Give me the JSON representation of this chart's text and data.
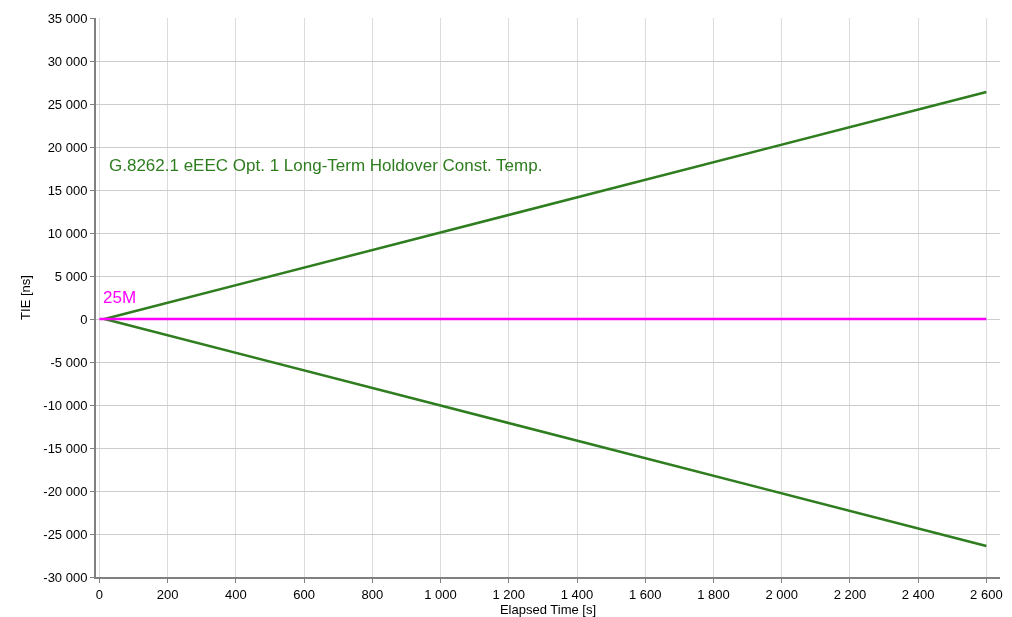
{
  "chart_data": {
    "type": "line",
    "xlabel": "Elapsed Time [s]",
    "ylabel": "TIE [ns]",
    "series": [
      {
        "name": "G.8262.1 eEEC Opt. 1 Long-Term Holdover Const. Temp.",
        "color": "#2e7d1f",
        "x": [
          15,
          2600
        ],
        "values": [
          0,
          26400
        ]
      },
      {
        "color": "#2e7d1f",
        "x": [
          15,
          2600
        ],
        "values": [
          0,
          -26400
        ]
      },
      {
        "name": "25M",
        "color": "#ff00ff",
        "x": [
          0,
          2600
        ],
        "values": [
          0,
          0
        ]
      }
    ],
    "xlim": [
      -10,
      2640
    ],
    "ylim": [
      -30000,
      35000
    ],
    "xticks": [
      0,
      200,
      400,
      600,
      800,
      {
        "value": 1000,
        "label": "1 000"
      },
      {
        "value": 1200,
        "label": "1 200"
      },
      {
        "value": 1400,
        "label": "1 400"
      },
      {
        "value": 1600,
        "label": "1 600"
      },
      {
        "value": 1800,
        "label": "1 800"
      },
      {
        "value": 2000,
        "label": "2 000"
      },
      {
        "value": 2200,
        "label": "2 200"
      },
      {
        "value": 2400,
        "label": "2 400"
      },
      {
        "value": 2600,
        "label": "2 600"
      }
    ],
    "yticks": [
      {
        "value": -30000,
        "label": "-30 000"
      },
      {
        "value": -25000,
        "label": "-25 000"
      },
      {
        "value": -20000,
        "label": "-20 000"
      },
      {
        "value": -15000,
        "label": "-15 000"
      },
      {
        "value": -10000,
        "label": "-10 000"
      },
      {
        "value": -5000,
        "label": "-5 000"
      },
      0,
      {
        "value": 5000,
        "label": "5 000"
      },
      {
        "value": 10000,
        "label": "10 000"
      },
      {
        "value": 15000,
        "label": "15 000"
      },
      {
        "value": 20000,
        "label": "20 000"
      },
      {
        "value": 25000,
        "label": "25 000"
      },
      {
        "value": 30000,
        "label": "30 000"
      },
      {
        "value": 35000,
        "label": "35 000"
      }
    ],
    "grid": true,
    "legend": false,
    "marker": "none",
    "line_style": "solid"
  }
}
